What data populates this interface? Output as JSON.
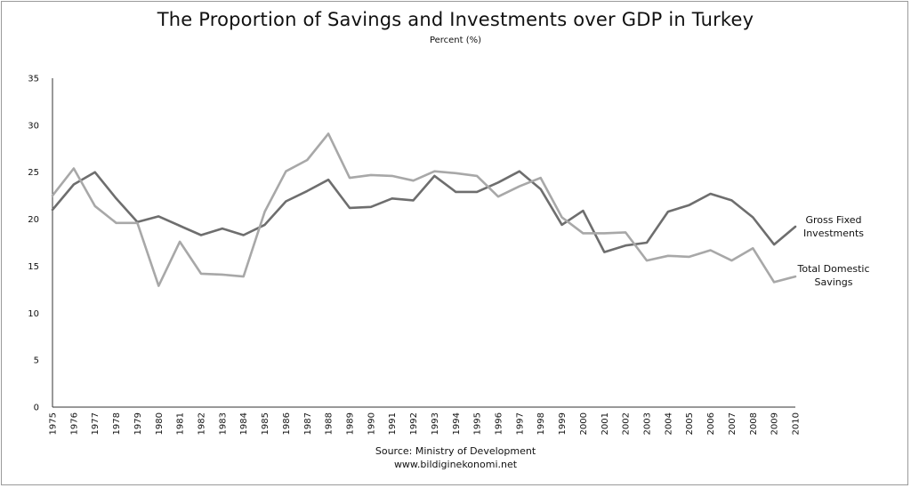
{
  "chart_data": {
    "type": "line",
    "title": "The Proportion of Savings and Investments over GDP in Turkey",
    "subtitle": "Percent (%)",
    "xlabel": "",
    "ylabel": "",
    "ylim": [
      0,
      35
    ],
    "yticks": [
      "0",
      "5",
      "10",
      "15",
      "20",
      "25",
      "30",
      "35"
    ],
    "x": [
      "1975",
      "1976",
      "1977",
      "1978",
      "1979",
      "1980",
      "1981",
      "1982",
      "1983",
      "1984",
      "1985",
      "1986",
      "1987",
      "1988",
      "1989",
      "1990",
      "1991",
      "1992",
      "1993",
      "1994",
      "1995",
      "1996",
      "1997",
      "1998",
      "1999",
      "2000",
      "2001",
      "2002",
      "2003",
      "2004",
      "2005",
      "2006",
      "2007",
      "2008",
      "2009",
      "2010"
    ],
    "grid": false,
    "legend_position": "right, at line ends",
    "series": [
      {
        "name": "Gross Fixed Investments",
        "label_lines": [
          "Gross Fixed",
          "Investments"
        ],
        "color": "#6e6e6e",
        "values": [
          21.0,
          23.7,
          25.0,
          22.2,
          19.7,
          20.3,
          19.3,
          18.3,
          19.0,
          18.3,
          19.4,
          21.9,
          23.0,
          24.2,
          21.2,
          21.3,
          22.2,
          22.0,
          24.6,
          22.9,
          22.9,
          23.9,
          25.1,
          23.2,
          19.4,
          20.9,
          16.5,
          17.2,
          17.5,
          20.8,
          21.5,
          22.7,
          22.0,
          20.2,
          17.3,
          19.2
        ]
      },
      {
        "name": "Total Domestic Savings",
        "label_lines": [
          "Total Domestic",
          "Savings"
        ],
        "color": "#a8a8a8",
        "values": [
          22.5,
          25.4,
          21.4,
          19.6,
          19.6,
          12.9,
          17.6,
          14.2,
          14.1,
          13.9,
          20.8,
          25.1,
          26.3,
          29.1,
          24.4,
          24.7,
          24.6,
          24.1,
          25.1,
          24.9,
          24.6,
          22.4,
          23.5,
          24.4,
          20.2,
          18.5,
          18.5,
          18.6,
          15.6,
          16.1,
          16.0,
          16.7,
          15.6,
          16.9,
          13.3,
          13.9
        ]
      }
    ]
  },
  "source_line1": "Source: Ministry of Development",
  "source_line2": "www.bildiginekonomi.net"
}
